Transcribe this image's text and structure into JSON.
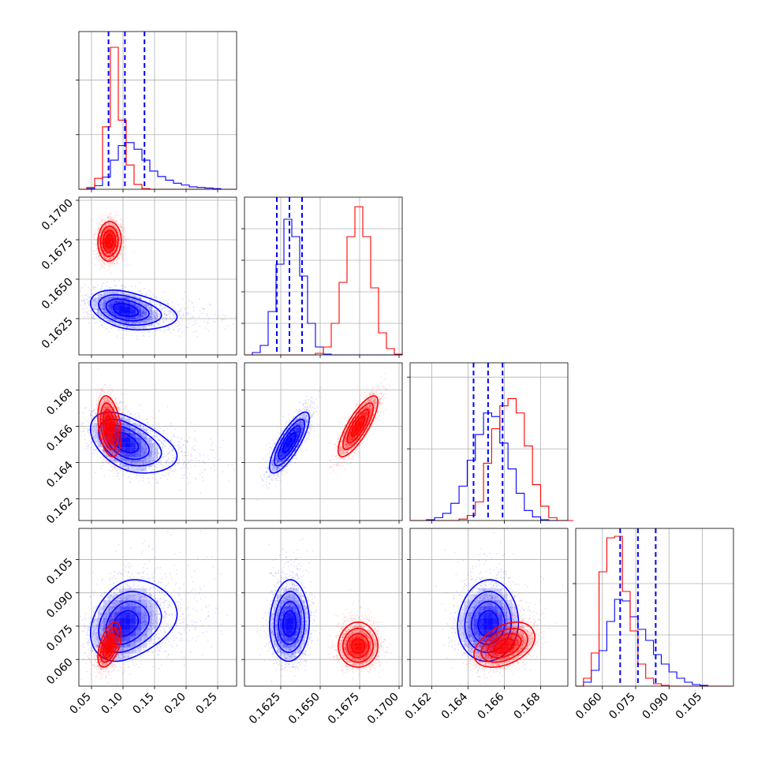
{
  "chart_data": {
    "type": "corner",
    "colors": {
      "blue": "#0000ff",
      "red": "#ff0000"
    },
    "grid": true,
    "parameters": [
      {
        "range": [
          0.03,
          0.28
        ],
        "ticks": [
          0.05,
          0.1,
          0.15,
          0.2,
          0.25
        ],
        "tick_labels": [
          "0.05",
          "0.10",
          "0.15",
          "0.20",
          "0.25"
        ]
      },
      {
        "range": [
          0.1602,
          0.1702
        ],
        "ticks": [
          0.1625,
          0.165,
          0.1675,
          0.17
        ],
        "tick_labels": [
          "0.1625",
          "0.1650",
          "0.1675",
          "0.1700"
        ]
      },
      {
        "range": [
          0.1608,
          0.1695
        ],
        "ticks": [
          0.162,
          0.164,
          0.166,
          0.168
        ],
        "tick_labels": [
          "0.162",
          "0.164",
          "0.166",
          "0.168"
        ]
      },
      {
        "range": [
          0.048,
          0.119
        ],
        "ticks": [
          0.06,
          0.075,
          0.09,
          0.105
        ],
        "tick_labels": [
          "0.060",
          "0.075",
          "0.090",
          "0.105"
        ]
      }
    ],
    "quantile_lines": [
      [
        0.077,
        0.103,
        0.134
      ],
      [
        0.16225,
        0.16305,
        0.16385
      ],
      [
        0.1643,
        0.1651,
        0.1659
      ],
      [
        0.068,
        0.076,
        0.084
      ]
    ],
    "histograms": [
      {
        "edges": [
          0.03,
          0.0425,
          0.055,
          0.0675,
          0.08,
          0.0925,
          0.105,
          0.1175,
          0.13,
          0.1425,
          0.155,
          0.1675,
          0.18,
          0.1925,
          0.205,
          0.2175,
          0.23,
          0.2425,
          0.255,
          0.2675,
          0.28
        ],
        "blue": [
          0,
          1,
          6,
          20,
          48,
          72,
          77,
          66,
          48,
          30,
          21,
          15,
          10,
          7,
          4,
          3,
          2,
          1,
          0,
          0
        ],
        "red": [
          0,
          3,
          18,
          103,
          234,
          114,
          40,
          8,
          1,
          0,
          0,
          0,
          0,
          0,
          0,
          0,
          0,
          0,
          0,
          0
        ]
      },
      {
        "edges": [
          0.1602,
          0.1607,
          0.1612,
          0.1617,
          0.1622,
          0.1627,
          0.1632,
          0.1637,
          0.1642,
          0.1647,
          0.1652,
          0.1657,
          0.1662,
          0.1667,
          0.1672,
          0.1677,
          0.1682,
          0.1687,
          0.1692,
          0.1697,
          0.1702
        ],
        "blue": [
          0,
          3,
          12,
          55,
          115,
          172,
          150,
          100,
          40,
          10,
          1,
          0,
          0,
          0,
          0,
          0,
          0,
          0,
          0,
          0
        ],
        "red": [
          0,
          0,
          0,
          0,
          0,
          0,
          0,
          0,
          0,
          2,
          10,
          40,
          92,
          150,
          188,
          150,
          85,
          28,
          8,
          1
        ]
      },
      {
        "edges": [
          0.1608,
          0.16125,
          0.1617,
          0.16215,
          0.1626,
          0.16305,
          0.1635,
          0.16395,
          0.1644,
          0.16485,
          0.1653,
          0.16575,
          0.1662,
          0.16665,
          0.1671,
          0.16755,
          0.168,
          0.16845,
          0.1689,
          0.16935,
          0.1698
        ],
        "blue": [
          0,
          0,
          1,
          4,
          10,
          24,
          48,
          84,
          120,
          150,
          145,
          108,
          72,
          38,
          14,
          5,
          1,
          0,
          0,
          0
        ],
        "red": [
          0,
          0,
          0,
          0,
          0,
          0,
          2,
          7,
          26,
          80,
          128,
          160,
          170,
          150,
          104,
          50,
          20,
          4,
          0,
          0
        ]
      },
      {
        "edges": [
          0.048,
          0.0515,
          0.055,
          0.0585,
          0.062,
          0.0655,
          0.069,
          0.0725,
          0.076,
          0.0795,
          0.083,
          0.0865,
          0.09,
          0.0935,
          0.097,
          0.1005,
          0.104,
          0.1075,
          0.111,
          0.1145,
          0.118
        ],
        "blue": [
          0,
          5,
          20,
          45,
          82,
          110,
          108,
          88,
          72,
          58,
          40,
          28,
          18,
          10,
          5,
          2,
          1,
          0,
          0,
          0
        ],
        "red": [
          0,
          10,
          42,
          145,
          188,
          190,
          120,
          70,
          28,
          10,
          3,
          1,
          0,
          0,
          0,
          0,
          0,
          0,
          0,
          0
        ]
      }
    ],
    "hist_ylim": [
      [
        0,
        260
      ],
      [
        0,
        200
      ],
      [
        0,
        220
      ],
      [
        0,
        200
      ]
    ],
    "hist_y_gridlines": [
      [
        90,
        180
      ],
      [
        40,
        80,
        120,
        160
      ],
      [
        100,
        200
      ],
      [
        65,
        130
      ]
    ],
    "distributions_2d": {
      "blue": {
        "mean": [
          0.103,
          0.16305,
          0.1651,
          0.076
        ],
        "sd": [
          0.026,
          0.0006,
          0.0008,
          0.008
        ],
        "skew": [
          1.4,
          0,
          0,
          0.5
        ]
      },
      "red": {
        "mean": [
          0.078,
          0.1674,
          0.166,
          0.066
        ],
        "sd": [
          0.0085,
          0.0006,
          0.0008,
          0.0045
        ],
        "skew": [
          0.2,
          0,
          0,
          0.4
        ]
      }
    },
    "correlations": {
      "blue": [
        [
          1,
          -0.35,
          -0.45,
          0.25
        ],
        [
          -0.35,
          1,
          0.8,
          0.05
        ],
        [
          -0.45,
          0.8,
          1,
          0.05
        ],
        [
          0.25,
          0.05,
          0.05,
          1
        ]
      ],
      "red": [
        [
          1,
          0.05,
          -0.3,
          0.5
        ],
        [
          0.05,
          1,
          0.8,
          0.0
        ],
        [
          -0.3,
          0.8,
          1,
          0.4
        ],
        [
          0.5,
          0.0,
          0.4,
          1
        ]
      ]
    }
  }
}
